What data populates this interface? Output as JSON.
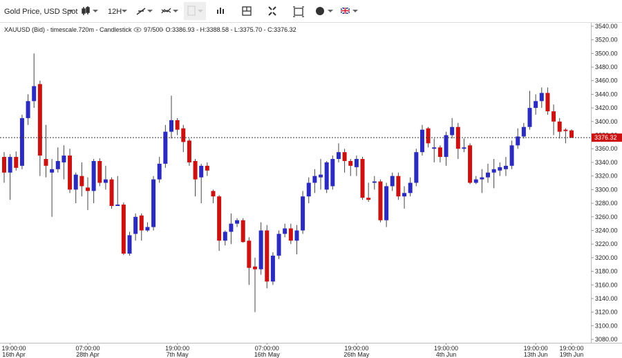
{
  "toolbar": {
    "instrument": "Gold Price, USD Spot",
    "interval": "12H"
  },
  "chart_data": {
    "type": "candlestick",
    "title": "XAUUSD (Bid) - timescale.720m - Candlestick",
    "counter": "97/500",
    "ohlc_text": "- O:3386.93 - H:3388.58 - L:3375.70 - C:3376.32",
    "current_price": 3376.32,
    "up_color": "#2b2bbf",
    "down_color": "#cc1111",
    "grid": false,
    "categories": [
      null,
      "19:00:00",
      null,
      null,
      null,
      null,
      null,
      null,
      null,
      null,
      null,
      null,
      null,
      null,
      "07:00:00",
      null,
      null,
      null,
      null,
      null,
      null,
      null,
      null,
      null,
      null,
      null,
      null,
      null,
      null,
      "19:00:00",
      null,
      null,
      null,
      null,
      null,
      null,
      null,
      null,
      null,
      null,
      null,
      null,
      null,
      null,
      "07:00:00",
      null,
      null,
      null,
      null,
      null,
      null,
      null,
      null,
      null,
      null,
      null,
      null,
      null,
      null,
      "19:00:00",
      null,
      null,
      null,
      null,
      null,
      null,
      null,
      null,
      null,
      null,
      null,
      null,
      null,
      null,
      "19:00:00",
      null,
      null,
      null,
      null,
      null,
      null,
      null,
      null,
      null,
      null,
      null,
      null,
      null,
      null,
      "19:00:00",
      null,
      null,
      null,
      null,
      null,
      "19:00:00"
    ],
    "category_dates": [
      null,
      "16th Apr",
      null,
      null,
      null,
      null,
      null,
      null,
      null,
      null,
      null,
      null,
      null,
      null,
      "28th Apr",
      null,
      null,
      null,
      null,
      null,
      null,
      null,
      null,
      null,
      null,
      null,
      null,
      null,
      null,
      "7th May",
      null,
      null,
      null,
      null,
      null,
      null,
      null,
      null,
      null,
      null,
      null,
      null,
      null,
      null,
      "16th May",
      null,
      null,
      null,
      null,
      null,
      null,
      null,
      null,
      null,
      null,
      null,
      null,
      null,
      null,
      "26th May",
      null,
      null,
      null,
      null,
      null,
      null,
      null,
      null,
      null,
      null,
      null,
      null,
      null,
      null,
      "4th Jun",
      null,
      null,
      null,
      null,
      null,
      null,
      null,
      null,
      null,
      null,
      null,
      null,
      null,
      null,
      "13th Jun",
      null,
      null,
      null,
      null,
      null,
      "19th Jun"
    ],
    "open": [
      3348,
      3325,
      3348,
      3335,
      3405,
      3430,
      3455,
      3345,
      3325,
      3330,
      3340,
      3350,
      3300,
      3320,
      3303,
      3298,
      3342,
      3310,
      3315,
      3276,
      3278,
      3206,
      3235,
      3262,
      3240,
      3245,
      3315,
      3338,
      3385,
      3402,
      3390,
      3372,
      3342,
      3318,
      3335,
      3298,
      3290,
      3225,
      3238,
      3250,
      3255,
      3225,
      3187,
      3183,
      3240,
      3165,
      3203,
      3235,
      3243,
      3225,
      3240,
      3290,
      3310,
      3318,
      3300,
      3305,
      3345,
      3355,
      3342,
      3333,
      3345,
      3288,
      3310,
      3312,
      3255,
      3305,
      3320,
      3290,
      3295,
      3310,
      3355,
      3390,
      3360,
      3362,
      3348,
      3380,
      3392,
      3360,
      3365,
      3310,
      3315,
      3318,
      3325,
      3328,
      3330,
      3335,
      3365,
      3378,
      3392,
      3420,
      3430,
      3442,
      3415,
      3400,
      3388,
      3386.93
    ],
    "high": [
      3355,
      3352,
      3356,
      3410,
      3440,
      3500,
      3460,
      3395,
      3345,
      3362,
      3365,
      3360,
      3325,
      3340,
      3318,
      3345,
      3346,
      3335,
      3318,
      3320,
      3281,
      3238,
      3265,
      3265,
      3252,
      3320,
      3348,
      3395,
      3438,
      3405,
      3395,
      3375,
      3345,
      3338,
      3340,
      3300,
      3292,
      3240,
      3265,
      3258,
      3258,
      3230,
      3200,
      3252,
      3248,
      3208,
      3240,
      3250,
      3250,
      3248,
      3298,
      3318,
      3330,
      3345,
      3342,
      3350,
      3368,
      3360,
      3345,
      3350,
      3348,
      3310,
      3320,
      3315,
      3310,
      3325,
      3325,
      3305,
      3318,
      3360,
      3395,
      3392,
      3375,
      3365,
      3385,
      3405,
      3398,
      3375,
      3368,
      3320,
      3330,
      3338,
      3345,
      3340,
      3348,
      3372,
      3390,
      3398,
      3445,
      3440,
      3450,
      3450,
      3425,
      3405,
      3390,
      3388.58
    ],
    "low": [
      3310,
      3285,
      3328,
      3330,
      3395,
      3420,
      3320,
      3318,
      3260,
      3325,
      3315,
      3295,
      3280,
      3290,
      3270,
      3280,
      3305,
      3300,
      3272,
      3276,
      3204,
      3203,
      3225,
      3225,
      3238,
      3240,
      3310,
      3332,
      3375,
      3380,
      3355,
      3335,
      3290,
      3280,
      3320,
      3280,
      3210,
      3218,
      3220,
      3245,
      3222,
      3160,
      3120,
      3175,
      3155,
      3160,
      3198,
      3230,
      3220,
      3205,
      3235,
      3280,
      3295,
      3300,
      3295,
      3300,
      3340,
      3325,
      3320,
      3320,
      3285,
      3282,
      3300,
      3252,
      3245,
      3298,
      3285,
      3272,
      3290,
      3305,
      3350,
      3362,
      3340,
      3340,
      3335,
      3375,
      3345,
      3355,
      3308,
      3308,
      3295,
      3310,
      3302,
      3320,
      3320,
      3330,
      3360,
      3375,
      3388,
      3410,
      3420,
      3410,
      3380,
      3375,
      3368,
      3375.7
    ],
    "close": [
      3325,
      3348,
      3332,
      3405,
      3430,
      3452,
      3350,
      3335,
      3330,
      3342,
      3350,
      3300,
      3322,
      3305,
      3298,
      3342,
      3310,
      3315,
      3276,
      3278,
      3206,
      3233,
      3260,
      3240,
      3245,
      3315,
      3338,
      3385,
      3402,
      3388,
      3370,
      3340,
      3315,
      3335,
      3328,
      3290,
      3225,
      3238,
      3250,
      3255,
      3223,
      3185,
      3183,
      3240,
      3165,
      3203,
      3235,
      3243,
      3225,
      3240,
      3290,
      3310,
      3320,
      3322,
      3340,
      3345,
      3355,
      3342,
      3335,
      3345,
      3288,
      3285,
      3312,
      3255,
      3305,
      3320,
      3290,
      3295,
      3310,
      3355,
      3388,
      3368,
      3362,
      3348,
      3380,
      3392,
      3360,
      3362,
      3310,
      3315,
      3318,
      3325,
      3330,
      3333,
      3335,
      3365,
      3378,
      3392,
      3420,
      3430,
      3442,
      3415,
      3400,
      3385,
      3386,
      3376.32
    ],
    "ylim": [
      3075,
      3545
    ],
    "yticks": [
      {
        "value": 3080,
        "label": "3080.00"
      },
      {
        "value": 3100,
        "label": "3100.00"
      },
      {
        "value": 3120,
        "label": "3120.00"
      },
      {
        "value": 3140,
        "label": "3140.00"
      },
      {
        "value": 3160,
        "label": "3160.00"
      },
      {
        "value": 3180,
        "label": "3180.00"
      },
      {
        "value": 3200,
        "label": "3200.00"
      },
      {
        "value": 3220,
        "label": "3220.00"
      },
      {
        "value": 3240,
        "label": "3240.00"
      },
      {
        "value": 3260,
        "label": "3260.00"
      },
      {
        "value": 3280,
        "label": "3280.00"
      },
      {
        "value": 3300,
        "label": "3300.00"
      },
      {
        "value": 3320,
        "label": "3320.00"
      },
      {
        "value": 3340,
        "label": "3340.00"
      },
      {
        "value": 3360,
        "label": "3360.00"
      },
      {
        "value": 3380,
        "label": "3380.00"
      },
      {
        "value": 3400,
        "label": "3400.00"
      },
      {
        "value": 3420,
        "label": "3420.00"
      },
      {
        "value": 3440,
        "label": "3440.00"
      },
      {
        "value": 3460,
        "label": "3460.00"
      },
      {
        "value": 3480,
        "label": "3480.00"
      },
      {
        "value": 3500,
        "label": "3500.00"
      },
      {
        "value": 3520,
        "label": "3520.00"
      },
      {
        "value": 3540,
        "label": "3540.00"
      }
    ]
  }
}
